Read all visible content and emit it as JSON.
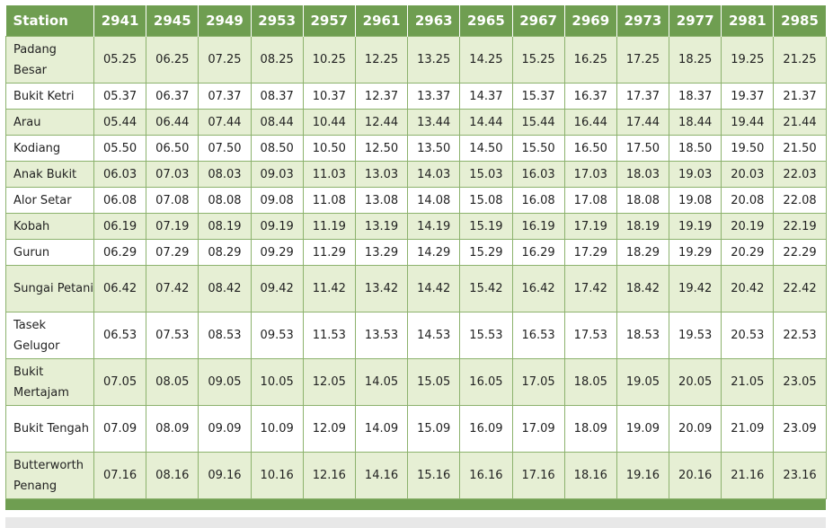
{
  "header": {
    "station_label": "Station",
    "trains": [
      "2941",
      "2945",
      "2949",
      "2953",
      "2957",
      "2961",
      "2963",
      "2965",
      "2967",
      "2969",
      "2973",
      "2977",
      "2981",
      "2985"
    ]
  },
  "rows": [
    {
      "station": "Padang Besar",
      "times": [
        "05.25",
        "06.25",
        "07.25",
        "08.25",
        "10.25",
        "12.25",
        "13.25",
        "14.25",
        "15.25",
        "16.25",
        "17.25",
        "18.25",
        "19.25",
        "21.25"
      ]
    },
    {
      "station": "Bukit Ketri",
      "times": [
        "05.37",
        "06.37",
        "07.37",
        "08.37",
        "10.37",
        "12.37",
        "13.37",
        "14.37",
        "15.37",
        "16.37",
        "17.37",
        "18.37",
        "19.37",
        "21.37"
      ]
    },
    {
      "station": "Arau",
      "times": [
        "05.44",
        "06.44",
        "07.44",
        "08.44",
        "10.44",
        "12.44",
        "13.44",
        "14.44",
        "15.44",
        "16.44",
        "17.44",
        "18.44",
        "19.44",
        "21.44"
      ]
    },
    {
      "station": "Kodiang",
      "times": [
        "05.50",
        "06.50",
        "07.50",
        "08.50",
        "10.50",
        "12.50",
        "13.50",
        "14.50",
        "15.50",
        "16.50",
        "17.50",
        "18.50",
        "19.50",
        "21.50"
      ]
    },
    {
      "station": "Anak Bukit",
      "times": [
        "06.03",
        "07.03",
        "08.03",
        "09.03",
        "11.03",
        "13.03",
        "14.03",
        "15.03",
        "16.03",
        "17.03",
        "18.03",
        "19.03",
        "20.03",
        "22.03"
      ]
    },
    {
      "station": "Alor Setar",
      "times": [
        "06.08",
        "07.08",
        "08.08",
        "09.08",
        "11.08",
        "13.08",
        "14.08",
        "15.08",
        "16.08",
        "17.08",
        "18.08",
        "19.08",
        "20.08",
        "22.08"
      ]
    },
    {
      "station": "Kobah",
      "times": [
        "06.19",
        "07.19",
        "08.19",
        "09.19",
        "11.19",
        "13.19",
        "14.19",
        "15.19",
        "16.19",
        "17.19",
        "18.19",
        "19.19",
        "20.19",
        "22.19"
      ]
    },
    {
      "station": "Gurun",
      "times": [
        "06.29",
        "07.29",
        "08.29",
        "09.29",
        "11.29",
        "13.29",
        "14.29",
        "15.29",
        "16.29",
        "17.29",
        "18.29",
        "19.29",
        "20.29",
        "22.29"
      ]
    },
    {
      "station": "Sungai Petani",
      "times": [
        "06.42",
        "07.42",
        "08.42",
        "09.42",
        "11.42",
        "13.42",
        "14.42",
        "15.42",
        "16.42",
        "17.42",
        "18.42",
        "19.42",
        "20.42",
        "22.42"
      ]
    },
    {
      "station": "Tasek Gelugor",
      "times": [
        "06.53",
        "07.53",
        "08.53",
        "09.53",
        "11.53",
        "13.53",
        "14.53",
        "15.53",
        "16.53",
        "17.53",
        "18.53",
        "19.53",
        "20.53",
        "22.53"
      ]
    },
    {
      "station": "Bukit Mertajam",
      "times": [
        "07.05",
        "08.05",
        "09.05",
        "10.05",
        "12.05",
        "14.05",
        "15.05",
        "16.05",
        "17.05",
        "18.05",
        "19.05",
        "20.05",
        "21.05",
        "23.05"
      ]
    },
    {
      "station": "Bukit Tengah",
      "times": [
        "07.09",
        "08.09",
        "09.09",
        "10.09",
        "12.09",
        "14.09",
        "15.09",
        "16.09",
        "17.09",
        "18.09",
        "19.09",
        "20.09",
        "21.09",
        "23.09"
      ]
    },
    {
      "station": "Butterworth Penang",
      "times": [
        "07.16",
        "08.16",
        "09.16",
        "10.16",
        "12.16",
        "14.16",
        "15.16",
        "16.16",
        "17.16",
        "18.16",
        "19.16",
        "20.16",
        "21.16",
        "23.16"
      ]
    }
  ],
  "colors": {
    "header_bg": "#6f9e51",
    "row_alt_bg": "#e6efd4",
    "border": "#8cb26d"
  }
}
